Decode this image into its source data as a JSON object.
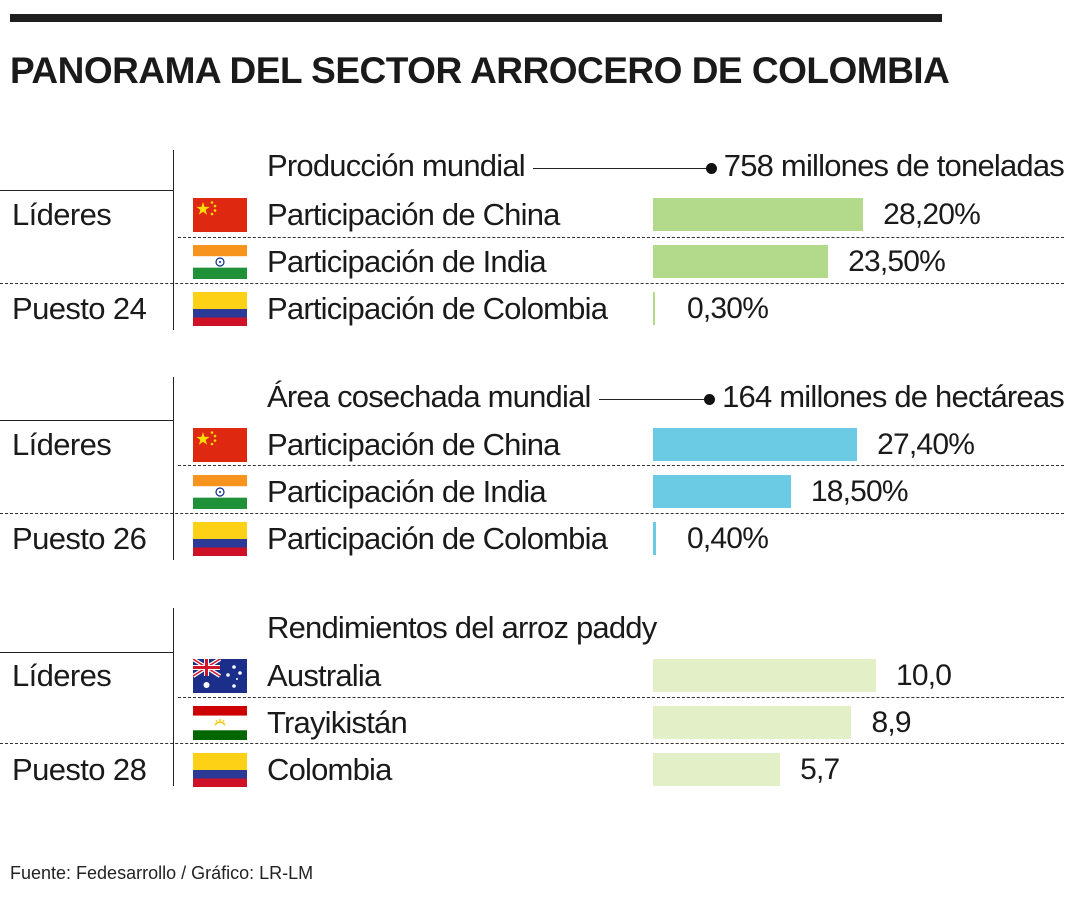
{
  "title": "PANORAMA DEL SECTOR ARROCERO DE COLOMBIA",
  "source": "Fuente: Fedesarrollo / Gráfico: LR-LM",
  "colors": {
    "produccion_bar": "#b3d98a",
    "area_bar": "#6ccbe4",
    "rendimiento_bar": "#e3efc6"
  },
  "chart_data": [
    {
      "type": "bar",
      "orientation": "horizontal",
      "title": "Producción mundial",
      "total_label": "758 millones de toneladas",
      "unit": "%",
      "groups": [
        {
          "label": "Líderes",
          "rows": [
            {
              "flag": "china-flag",
              "label": "Participación de China",
              "value": 28.2,
              "value_label": "28,20%"
            },
            {
              "flag": "india-flag",
              "label": "Participación de India",
              "value": 23.5,
              "value_label": "23,50%"
            }
          ]
        },
        {
          "label": "Puesto 24",
          "rows": [
            {
              "flag": "colombia-flag",
              "label": "Participación de Colombia",
              "value": 0.3,
              "value_label": "0,30%"
            }
          ]
        }
      ]
    },
    {
      "type": "bar",
      "orientation": "horizontal",
      "title": "Área cosechada mundial",
      "total_label": "164 millones de hectáreas",
      "unit": "%",
      "groups": [
        {
          "label": "Líderes",
          "rows": [
            {
              "flag": "china-flag",
              "label": "Participación de China",
              "value": 27.4,
              "value_label": "27,40%"
            },
            {
              "flag": "india-flag",
              "label": "Participación de India",
              "value": 18.5,
              "value_label": "18,50%"
            }
          ]
        },
        {
          "label": "Puesto 26",
          "rows": [
            {
              "flag": "colombia-flag",
              "label": "Participación de Colombia",
              "value": 0.4,
              "value_label": "0,40%"
            }
          ]
        }
      ]
    },
    {
      "type": "bar",
      "orientation": "horizontal",
      "title": "Rendimientos del arroz paddy",
      "total_label": "",
      "groups": [
        {
          "label": "Líderes",
          "rows": [
            {
              "flag": "australia-flag",
              "label": "Australia",
              "value": 10.0,
              "value_label": "10,0"
            },
            {
              "flag": "tajikistan-flag",
              "label": "Trayikistán",
              "value": 8.9,
              "value_label": "8,9"
            }
          ]
        },
        {
          "label": "Puesto 28",
          "rows": [
            {
              "flag": "colombia-flag",
              "label": "Colombia",
              "value": 5.7,
              "value_label": "5,7"
            }
          ]
        }
      ]
    }
  ]
}
